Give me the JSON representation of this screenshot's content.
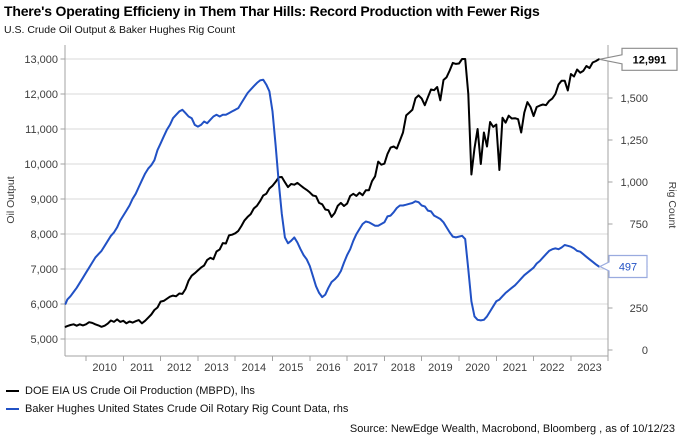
{
  "header": {
    "title": "There's Operating Efficieny in Them Thar Hills: Record Production with Fewer Rigs",
    "subtitle": "U.S. Crude Oil Output & Baker Hughes Rig Count"
  },
  "chart_data": {
    "type": "line",
    "title": "There's Operating Efficieny in Them Thar Hills: Record Production with Fewer Rigs",
    "subtitle": "U.S. Crude Oil Output & Baker Hughes Rig Count",
    "grid": "horizontal",
    "legend_position": "bottom-left",
    "x_axis": {
      "tick_labels": [
        "2010",
        "2011",
        "2012",
        "2013",
        "2014",
        "2015",
        "2016",
        "2017",
        "2018",
        "2019",
        "2020",
        "2021",
        "2022",
        "2023"
      ],
      "range_start": "Jun 2009",
      "range_end": "Oct 2023"
    },
    "left_axis": {
      "label": "Oil Output",
      "tick_values": [
        5000,
        6000,
        7000,
        8000,
        9000,
        10000,
        11000,
        12000,
        13000
      ],
      "tick_labels": [
        "5,000",
        "6,000",
        "7,000",
        "8,000",
        "9,000",
        "10,000",
        "11,000",
        "12,000",
        "13,000"
      ],
      "ylim": [
        5000,
        13400
      ]
    },
    "right_axis": {
      "label": "Rig Count",
      "tick_values": [
        0,
        250,
        500,
        750,
        1000,
        1250,
        1500
      ],
      "tick_labels": [
        "0",
        "250",
        "500",
        "750",
        "1,000",
        "1,250",
        "1,500"
      ],
      "ylim": [
        0,
        1815
      ]
    },
    "frequency": "monthly",
    "start": {
      "year": 2009,
      "month": 6
    },
    "series": [
      {
        "name": "DOE EIA US Crude Oil Production (MBPD), lhs",
        "axis": "left",
        "color": "#000000",
        "values": [
          5350,
          5370,
          5400,
          5420,
          5380,
          5420,
          5390,
          5420,
          5480,
          5460,
          5420,
          5390,
          5350,
          5380,
          5440,
          5530,
          5490,
          5560,
          5490,
          5520,
          5450,
          5500,
          5470,
          5510,
          5540,
          5450,
          5520,
          5610,
          5700,
          5830,
          5900,
          6070,
          6090,
          6150,
          6210,
          6240,
          6220,
          6300,
          6290,
          6430,
          6670,
          6810,
          6880,
          6960,
          7040,
          7100,
          7260,
          7320,
          7280,
          7500,
          7560,
          7740,
          7730,
          7960,
          7980,
          8020,
          8090,
          8230,
          8390,
          8490,
          8570,
          8730,
          8810,
          8940,
          9100,
          9150,
          9300,
          9380,
          9490,
          9620,
          9630,
          9480,
          9340,
          9430,
          9410,
          9460,
          9390,
          9320,
          9260,
          9190,
          9100,
          9080,
          8890,
          8850,
          8700,
          8680,
          8490,
          8600,
          8810,
          8890,
          8800,
          8870,
          9090,
          9150,
          9090,
          9180,
          9110,
          9250,
          9250,
          9510,
          9650,
          10070,
          9980,
          10010,
          10290,
          10470,
          10500,
          10440,
          10670,
          10900,
          11390,
          11470,
          11550,
          11880,
          11960,
          11870,
          11680,
          11910,
          12130,
          12110,
          12200,
          11820,
          12400,
          12480,
          12670,
          12890,
          12860,
          12870,
          13000,
          13000,
          12000,
          9700,
          10450,
          11000,
          10000,
          10900,
          10500,
          11200,
          11060,
          11130,
          9830,
          11320,
          11180,
          11380,
          11300,
          11310,
          11280,
          10900,
          11470,
          11770,
          11630,
          11370,
          11630,
          11670,
          11700,
          11680,
          11800,
          11870,
          12000,
          12270,
          12380,
          12380,
          12100,
          12570,
          12500,
          12700,
          12610,
          12660,
          12800,
          12740,
          12900,
          12940,
          12991
        ]
      },
      {
        "name": "Baker Hughes United States Crude Oil Rotary Rig Count Data, rhs",
        "axis": "right",
        "color": "#2151c5",
        "values": [
          275,
          300,
          320,
          345,
          370,
          400,
          430,
          460,
          490,
          520,
          550,
          570,
          590,
          620,
          650,
          680,
          700,
          730,
          770,
          800,
          830,
          860,
          900,
          930,
          970,
          1010,
          1050,
          1080,
          1100,
          1130,
          1190,
          1230,
          1270,
          1310,
          1340,
          1380,
          1400,
          1420,
          1430,
          1410,
          1390,
          1380,
          1340,
          1330,
          1340,
          1360,
          1350,
          1370,
          1390,
          1400,
          1390,
          1400,
          1400,
          1410,
          1420,
          1430,
          1440,
          1470,
          1500,
          1530,
          1550,
          1570,
          1590,
          1605,
          1609,
          1580,
          1540,
          1420,
          1220,
          1000,
          810,
          670,
          635,
          650,
          670,
          640,
          600,
          565,
          540,
          500,
          440,
          380,
          340,
          315,
          330,
          370,
          405,
          420,
          440,
          470,
          520,
          565,
          600,
          650,
          690,
          720,
          750,
          765,
          760,
          750,
          740,
          740,
          750,
          760,
          795,
          800,
          820,
          845,
          860,
          860,
          865,
          870,
          875,
          885,
          880,
          860,
          855,
          830,
          825,
          800,
          790,
          780,
          760,
          730,
          700,
          675,
          670,
          675,
          680,
          660,
          480,
          290,
          200,
          180,
          176,
          180,
          200,
          230,
          260,
          290,
          300,
          320,
          340,
          355,
          370,
          385,
          405,
          425,
          445,
          460,
          475,
          490,
          515,
          530,
          550,
          570,
          590,
          600,
          605,
          600,
          610,
          625,
          620,
          615,
          605,
          590,
          585,
          570,
          555,
          540,
          525,
          510,
          497
        ]
      }
    ],
    "callouts": [
      {
        "text": "12,991",
        "value": 12991,
        "axis": "left",
        "text_color": "#000000",
        "border_color": "#8c8c8c",
        "bold": true
      },
      {
        "text": "497",
        "value": 497,
        "axis": "right",
        "text_color": "#2151c5",
        "border_color": "#9aabdf",
        "bold": false
      }
    ]
  },
  "legend": {
    "items": [
      {
        "label": "DOE EIA US Crude Oil Production (MBPD), lhs",
        "color": "#000000"
      },
      {
        "label": "Baker Hughes United States Crude Oil Rotary Rig Count Data, rhs",
        "color": "#2151c5"
      }
    ]
  },
  "source": "Source: NewEdge Wealth, Macrobond, Bloomberg , as of 10/12/23",
  "colors": {
    "production_line": "#000000",
    "rig_line": "#2151c5",
    "gridline": "#d9d9d9",
    "axis_line": "#a3a3a3",
    "tick_text": "#3d3d3d"
  }
}
